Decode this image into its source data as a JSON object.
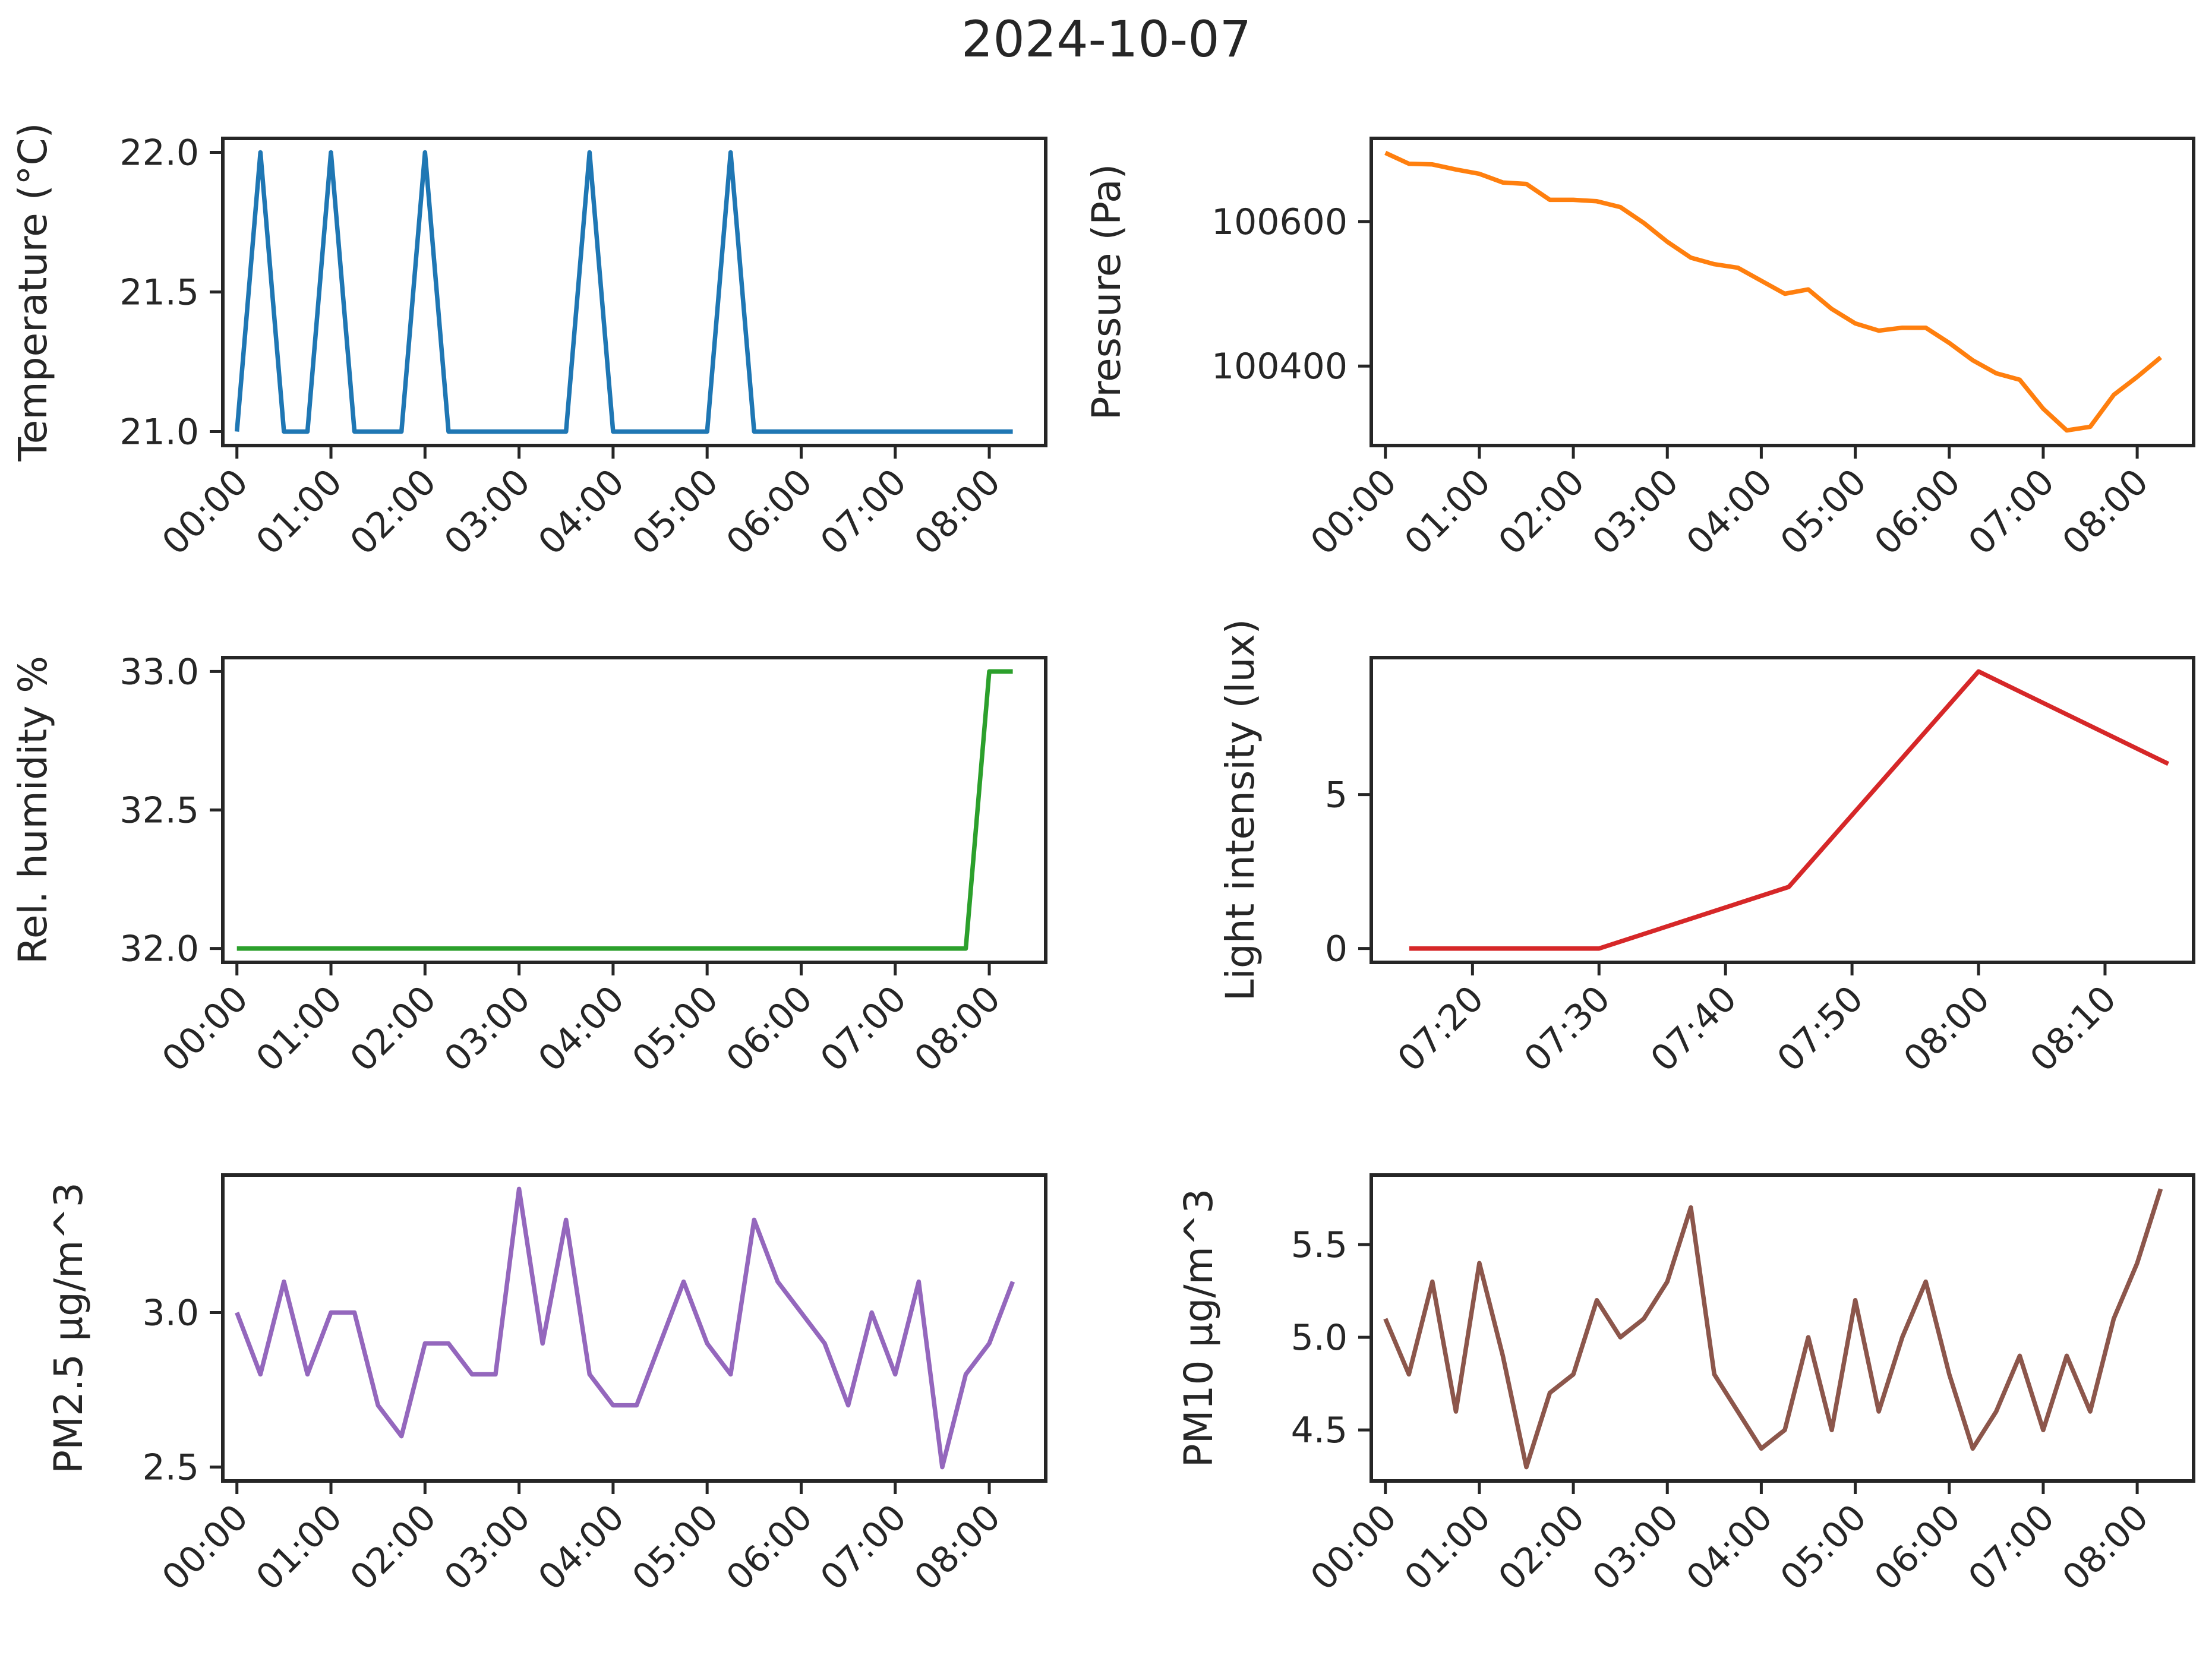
{
  "figure": {
    "title": "2024-10-07"
  },
  "chart_data": [
    {
      "type": "line",
      "ylabel": "Temperature (°C)",
      "color": "#1f77b4",
      "xlim": [
        -0.15,
        8.6
      ],
      "ylim": [
        20.95,
        22.05
      ],
      "x_ticks": [
        0,
        1,
        2,
        3,
        4,
        5,
        6,
        7,
        8
      ],
      "x_tick_labels": [
        "00:00",
        "01:00",
        "02:00",
        "03:00",
        "04:00",
        "05:00",
        "06:00",
        "07:00",
        "08:00"
      ],
      "y_ticks": [
        21.0,
        21.5,
        22.0
      ],
      "y_tick_labels": [
        "21.0",
        "21.5",
        "22.0"
      ],
      "series": [
        {
          "x": [
            0,
            0.25,
            0.5,
            0.75,
            1,
            1.25,
            1.5,
            1.75,
            2,
            2.25,
            2.5,
            2.75,
            3,
            3.25,
            3.5,
            3.75,
            4,
            4.25,
            4.5,
            4.75,
            5,
            5.25,
            5.5,
            5.75,
            6,
            6.25,
            6.5,
            6.75,
            7,
            7.25,
            7.5,
            7.75,
            8,
            8.25
          ],
          "y": [
            21,
            22,
            21,
            21,
            22,
            21,
            21,
            21,
            22,
            21,
            21,
            21,
            21,
            21,
            21,
            22,
            21,
            21,
            21,
            21,
            21,
            22,
            21,
            21,
            21,
            21,
            21,
            21,
            21,
            21,
            21,
            21,
            21,
            21
          ]
        }
      ]
    },
    {
      "type": "line",
      "ylabel": "Pressure (Pa)",
      "color": "#ff7f0e",
      "xlim": [
        -0.15,
        8.6
      ],
      "ylim": [
        100290,
        100715
      ],
      "x_ticks": [
        0,
        1,
        2,
        3,
        4,
        5,
        6,
        7,
        8
      ],
      "x_tick_labels": [
        "00:00",
        "01:00",
        "02:00",
        "03:00",
        "04:00",
        "05:00",
        "06:00",
        "07:00",
        "08:00"
      ],
      "y_ticks": [
        100400,
        100600
      ],
      "y_tick_labels": [
        "100400",
        "100600"
      ],
      "series": [
        {
          "x": [
            0,
            0.25,
            0.5,
            0.75,
            1,
            1.25,
            1.5,
            1.75,
            2,
            2.25,
            2.5,
            2.75,
            3,
            3.25,
            3.5,
            3.75,
            4,
            4.25,
            4.5,
            4.75,
            5,
            5.25,
            5.5,
            5.75,
            6,
            6.25,
            6.5,
            6.75,
            7,
            7.25,
            7.5,
            7.75,
            8,
            8.25
          ],
          "y": [
            100695,
            100680,
            100679,
            100672,
            100666,
            100654,
            100652,
            100630,
            100630,
            100628,
            100620,
            100598,
            100572,
            100550,
            100541,
            100536,
            100518,
            100500,
            100506,
            100479,
            100459,
            100449,
            100453,
            100453,
            100432,
            100408,
            100390,
            100381,
            100341,
            100311,
            100316,
            100360,
            100385,
            100412
          ]
        }
      ]
    },
    {
      "type": "line",
      "ylabel": "Rel. humidity %",
      "color": "#2ca02c",
      "xlim": [
        -0.15,
        8.6
      ],
      "ylim": [
        31.95,
        33.05
      ],
      "x_ticks": [
        0,
        1,
        2,
        3,
        4,
        5,
        6,
        7,
        8
      ],
      "x_tick_labels": [
        "00:00",
        "01:00",
        "02:00",
        "03:00",
        "04:00",
        "05:00",
        "06:00",
        "07:00",
        "08:00"
      ],
      "y_ticks": [
        32.0,
        32.5,
        33.0
      ],
      "y_tick_labels": [
        "32.0",
        "32.5",
        "33.0"
      ],
      "series": [
        {
          "x": [
            0,
            7.75,
            8,
            8.25
          ],
          "y": [
            32,
            32,
            33,
            33
          ]
        }
      ]
    },
    {
      "type": "line",
      "ylabel": "Light intensity (lux)",
      "color": "#d62728",
      "xlim": [
        432,
        497
      ],
      "ylim": [
        -0.45,
        9.45
      ],
      "x_ticks": [
        440,
        450,
        460,
        470,
        480,
        490
      ],
      "x_tick_labels": [
        "07:20",
        "07:30",
        "07:40",
        "07:50",
        "08:00",
        "08:10"
      ],
      "y_ticks": [
        0,
        5
      ],
      "y_tick_labels": [
        "0",
        "5"
      ],
      "series": [
        {
          "x": [
            435,
            450,
            465,
            480,
            495
          ],
          "y": [
            0,
            0,
            2,
            9,
            6
          ]
        }
      ]
    },
    {
      "type": "line",
      "ylabel": "PM2.5 µg/m^3",
      "color": "#9467bd",
      "xlim": [
        -0.15,
        8.6
      ],
      "ylim": [
        2.455,
        3.445
      ],
      "x_ticks": [
        0,
        1,
        2,
        3,
        4,
        5,
        6,
        7,
        8
      ],
      "x_tick_labels": [
        "00:00",
        "01:00",
        "02:00",
        "03:00",
        "04:00",
        "05:00",
        "06:00",
        "07:00",
        "08:00"
      ],
      "y_ticks": [
        2.5,
        3.0
      ],
      "y_tick_labels": [
        "2.5",
        "3.0"
      ],
      "series": [
        {
          "x": [
            0,
            0.25,
            0.5,
            0.75,
            1,
            1.25,
            1.5,
            1.75,
            2,
            2.25,
            2.5,
            2.75,
            3,
            3.25,
            3.5,
            3.75,
            4,
            4.25,
            4.5,
            4.75,
            5,
            5.25,
            5.5,
            5.75,
            6,
            6.25,
            6.5,
            6.75,
            7,
            7.25,
            7.5,
            7.75,
            8,
            8.25
          ],
          "y": [
            3.0,
            2.8,
            3.1,
            2.8,
            3.0,
            3.0,
            2.7,
            2.6,
            2.9,
            2.9,
            2.8,
            2.8,
            3.4,
            2.9,
            3.3,
            2.8,
            2.7,
            2.7,
            2.9,
            3.1,
            2.9,
            2.8,
            3.3,
            3.1,
            3.0,
            2.9,
            2.7,
            3.0,
            2.8,
            3.1,
            2.5,
            2.8,
            2.9,
            3.1
          ]
        }
      ]
    },
    {
      "type": "line",
      "ylabel": "PM10 µg/m^3",
      "color": "#8c564b",
      "xlim": [
        -0.15,
        8.6
      ],
      "ylim": [
        4.225,
        5.875
      ],
      "x_ticks": [
        0,
        1,
        2,
        3,
        4,
        5,
        6,
        7,
        8
      ],
      "x_tick_labels": [
        "00:00",
        "01:00",
        "02:00",
        "03:00",
        "04:00",
        "05:00",
        "06:00",
        "07:00",
        "08:00"
      ],
      "y_ticks": [
        4.5,
        5.0,
        5.5
      ],
      "y_tick_labels": [
        "4.5",
        "5.0",
        "5.5"
      ],
      "series": [
        {
          "x": [
            0,
            0.25,
            0.5,
            0.75,
            1,
            1.25,
            1.5,
            1.75,
            2,
            2.25,
            2.5,
            2.75,
            3,
            3.25,
            3.5,
            4,
            4.25,
            4.5,
            4.75,
            5,
            5.25,
            5.5,
            5.75,
            6,
            6.25,
            6.5,
            6.75,
            7,
            7.25,
            7.5,
            7.75,
            8,
            8.25
          ],
          "y": [
            5.1,
            4.8,
            5.3,
            4.6,
            5.4,
            4.9,
            4.3,
            4.7,
            4.8,
            5.2,
            5.0,
            5.1,
            5.3,
            5.7,
            4.8,
            4.4,
            4.5,
            5.0,
            4.5,
            5.2,
            4.6,
            5.0,
            5.3,
            4.8,
            4.4,
            4.6,
            4.9,
            4.5,
            4.9,
            4.6,
            5.1,
            5.4,
            5.8
          ]
        }
      ]
    }
  ]
}
